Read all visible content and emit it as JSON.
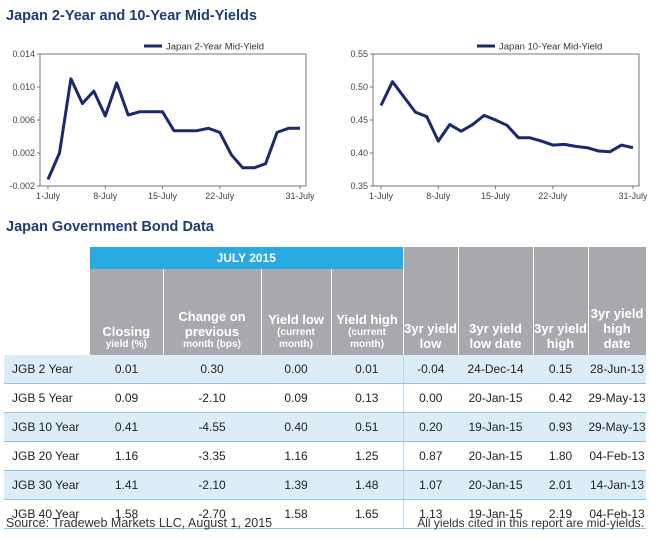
{
  "titles": {
    "charts": "Japan 2-Year and 10-Year Mid-Yields",
    "table": "Japan Government Bond Data"
  },
  "colors": {
    "title": "#1d3c78",
    "line": "#1a2a6c",
    "header_blue": "#29aae1",
    "header_gray": "#a7a9ac",
    "row_shade": "#dcedf8"
  },
  "chart_data": [
    {
      "type": "line",
      "series": [
        {
          "name": "Japan 2-Year Mid-Yield",
          "values": [
            -0.0012,
            0.002,
            0.011,
            0.008,
            0.0095,
            0.0065,
            0.0105,
            0.0066,
            0.007,
            0.007,
            0.007,
            0.0047,
            0.0047,
            0.0047,
            0.005,
            0.0045,
            0.0018,
            0.0002,
            0.0002,
            0.0007,
            0.0045,
            0.005,
            0.005
          ]
        }
      ],
      "x": [
        "1-Jul",
        "2-Jul",
        "3-Jul",
        "6-Jul",
        "7-Jul",
        "8-Jul",
        "9-Jul",
        "10-Jul",
        "13-Jul",
        "14-Jul",
        "15-Jul",
        "16-Jul",
        "17-Jul",
        "20-Jul",
        "21-Jul",
        "22-Jul",
        "23-Jul",
        "24-Jul",
        "27-Jul",
        "28-Jul",
        "29-Jul",
        "30-Jul",
        "31-Jul"
      ],
      "xticks": [
        {
          "label": "1-July",
          "index": 0
        },
        {
          "label": "8-July",
          "index": 5
        },
        {
          "label": "15-July",
          "index": 10
        },
        {
          "label": "22-July",
          "index": 15
        },
        {
          "label": "31-July",
          "index": 22
        }
      ],
      "yticks": [
        "-0.002",
        "0.002",
        "0.006",
        "0.010",
        "0.014"
      ],
      "ylim": [
        -0.002,
        0.014
      ]
    },
    {
      "type": "line",
      "series": [
        {
          "name": "Japan 10-Year Mid-Yield",
          "values": [
            0.472,
            0.508,
            0.485,
            0.462,
            0.455,
            0.418,
            0.443,
            0.433,
            0.443,
            0.457,
            0.45,
            0.442,
            0.423,
            0.423,
            0.418,
            0.412,
            0.413,
            0.41,
            0.408,
            0.403,
            0.402,
            0.412,
            0.408
          ]
        }
      ],
      "x": [
        "1-Jul",
        "2-Jul",
        "3-Jul",
        "6-Jul",
        "7-Jul",
        "8-Jul",
        "9-Jul",
        "10-Jul",
        "13-Jul",
        "14-Jul",
        "15-Jul",
        "16-Jul",
        "17-Jul",
        "20-Jul",
        "21-Jul",
        "22-Jul",
        "23-Jul",
        "24-Jul",
        "27-Jul",
        "28-Jul",
        "29-Jul",
        "30-Jul",
        "31-Jul"
      ],
      "xticks": [
        {
          "label": "1-July",
          "index": 0
        },
        {
          "label": "8-July",
          "index": 5
        },
        {
          "label": "15-July",
          "index": 10
        },
        {
          "label": "22-July",
          "index": 15
        },
        {
          "label": "31-July",
          "index": 22
        }
      ],
      "yticks": [
        "0.35",
        "0.40",
        "0.45",
        "0.50",
        "0.55"
      ],
      "ylim": [
        0.35,
        0.55
      ]
    }
  ],
  "table": {
    "group_header": "JULY 2015",
    "headers": [
      {
        "main": "Closing",
        "sub": "yield (%)"
      },
      {
        "main": "Change on previous",
        "sub": "month (bps)"
      },
      {
        "main": "Yield low",
        "sub": "(current month)"
      },
      {
        "main": "Yield high",
        "sub": "(current month)"
      },
      {
        "main": "3yr yield low",
        "sub": ""
      },
      {
        "main": "3yr yield low date",
        "sub": ""
      },
      {
        "main": "3yr yield high",
        "sub": ""
      },
      {
        "main": "3yr yield high date",
        "sub": ""
      }
    ],
    "rows": [
      [
        "JGB 2 Year",
        "0.01",
        "0.30",
        "0.00",
        "0.01",
        "-0.04",
        "24-Dec-14",
        "0.15",
        "28-Jun-13"
      ],
      [
        "JGB 5 Year",
        "0.09",
        "-2.10",
        "0.09",
        "0.13",
        "0.00",
        "20-Jan-15",
        "0.42",
        "29-May-13"
      ],
      [
        "JGB 10 Year",
        "0.41",
        "-4.55",
        "0.40",
        "0.51",
        "0.20",
        "19-Jan-15",
        "0.93",
        "29-May-13"
      ],
      [
        "JGB 20 Year",
        "1.16",
        "-3.35",
        "1.16",
        "1.25",
        "0.87",
        "20-Jan-15",
        "1.80",
        "04-Feb-13"
      ],
      [
        "JGB 30 Year",
        "1.41",
        "-2.10",
        "1.39",
        "1.48",
        "1.07",
        "20-Jan-15",
        "2.01",
        "14-Jan-13"
      ],
      [
        "JGB 40 Year",
        "1.58",
        "-2.70",
        "1.58",
        "1.65",
        "1.13",
        "19-Jan-15",
        "2.19",
        "04-Feb-13"
      ]
    ]
  },
  "footer": {
    "source": "Source: Tradeweb Markets LLC, August 1, 2015",
    "note": "All yields cited in this report are mid-yields."
  }
}
